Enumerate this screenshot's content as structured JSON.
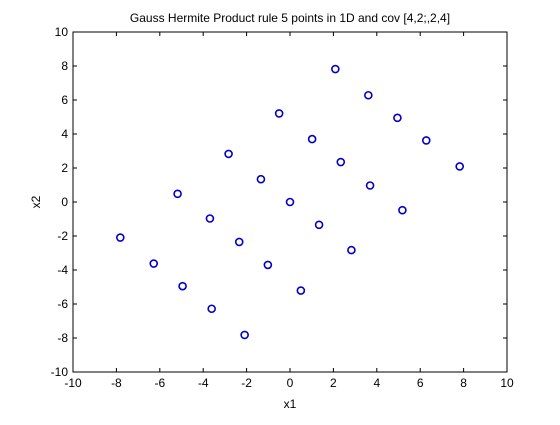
{
  "chart_data": {
    "type": "scatter",
    "title": "Gauss Hermite Product rule 5 points in 1D and cov [4,2;,2,4]",
    "xlabel": "x1",
    "ylabel": "x2",
    "xlim": [
      -10,
      10
    ],
    "ylim": [
      -10,
      10
    ],
    "xticks": [
      -10,
      -8,
      -6,
      -4,
      -2,
      0,
      2,
      4,
      6,
      8,
      10
    ],
    "yticks": [
      -10,
      -8,
      -6,
      -4,
      -2,
      0,
      2,
      4,
      6,
      8,
      10
    ],
    "grid": false,
    "marker": "circle-open",
    "color": "#0000cc",
    "series": [
      {
        "points": [
          [
            -7.82,
            -2.09
          ],
          [
            -6.28,
            -3.62
          ],
          [
            -4.95,
            -4.95
          ],
          [
            -3.61,
            -6.28
          ],
          [
            -2.09,
            -7.82
          ],
          [
            -5.18,
            0.48
          ],
          [
            -3.69,
            -0.97
          ],
          [
            -2.34,
            -2.35
          ],
          [
            -1.02,
            -3.7
          ],
          [
            0.5,
            -5.21
          ],
          [
            -2.83,
            2.83
          ],
          [
            -1.34,
            1.34
          ],
          [
            0.0,
            0.0
          ],
          [
            1.34,
            -1.34
          ],
          [
            2.83,
            -2.83
          ],
          [
            -0.5,
            5.21
          ],
          [
            1.02,
            3.7
          ],
          [
            2.34,
            2.35
          ],
          [
            3.69,
            0.97
          ],
          [
            5.18,
            -0.48
          ],
          [
            2.09,
            7.82
          ],
          [
            3.61,
            6.28
          ],
          [
            4.95,
            4.95
          ],
          [
            6.28,
            3.62
          ],
          [
            7.82,
            2.09
          ]
        ]
      }
    ]
  }
}
